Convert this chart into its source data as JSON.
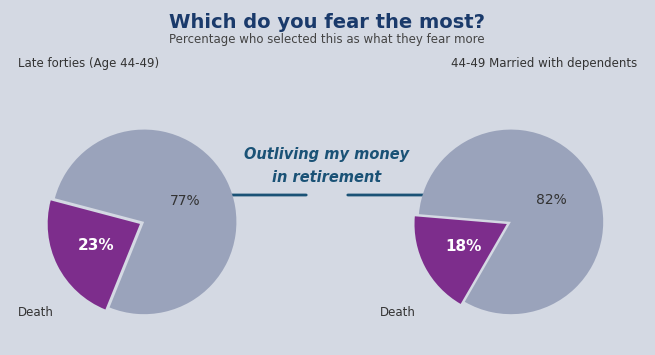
{
  "title": "Which do you fear the most?",
  "subtitle": "Percentage who selected this as what they fear more",
  "background_color": "#d4d9e3",
  "pie1_label": "Late forties (Age 44-49)",
  "pie1_values": [
    23,
    77
  ],
  "pie1_colors": [
    "#7d2d8c",
    "#9aa3bb"
  ],
  "pie1_text_labels": [
    "23%",
    "77%"
  ],
  "pie1_death_label": "Death",
  "pie2_label": "44-49 Married with dependents",
  "pie2_values": [
    18,
    82
  ],
  "pie2_colors": [
    "#7d2d8c",
    "#9aa3bb"
  ],
  "pie2_text_labels": [
    "18%",
    "82%"
  ],
  "pie2_death_label": "Death",
  "center_text_line1": "Outliving my money",
  "center_text_line2": "in retirement",
  "center_text_color": "#1a5276",
  "title_color": "#1a3a6b",
  "subtitle_color": "#444444",
  "arrow_color": "#1a5276",
  "pie1_startangle": 248,
  "pie2_startangle": 240,
  "pie1_explode": [
    0.05,
    0.0
  ],
  "pie2_explode": [
    0.05,
    0.0
  ]
}
